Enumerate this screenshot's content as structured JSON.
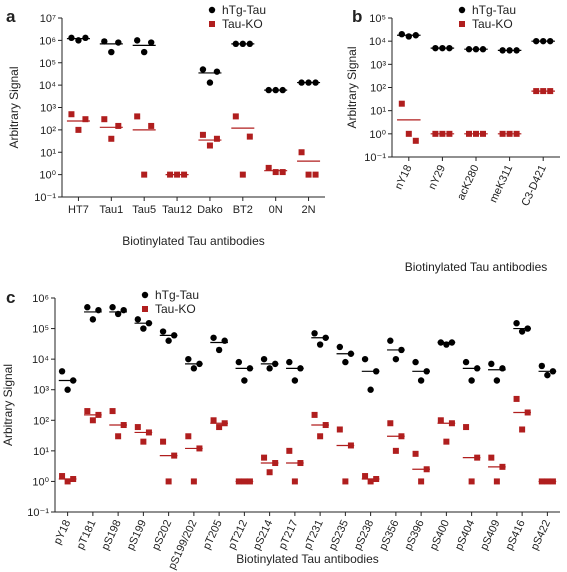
{
  "chart_data": [
    {
      "type": "scatter",
      "panel": "a",
      "ylabel": "Arbitrary Signal",
      "xlabel": "Biotinylated Tau antibodies",
      "log_y": true,
      "categories": [
        "HT7",
        "Tau1",
        "Tau5",
        "Tau12",
        "Dako",
        "BT2",
        "0N",
        "2N"
      ],
      "ylim": [
        0.1,
        10000000
      ],
      "yticks": [
        {
          "value": 0.1,
          "label": "10⁻¹"
        },
        {
          "value": 1,
          "label": "10⁰"
        },
        {
          "value": 10,
          "label": "10¹"
        },
        {
          "value": 100,
          "label": "10²"
        },
        {
          "value": 1000,
          "label": "10³"
        },
        {
          "value": 10000,
          "label": "10⁴"
        },
        {
          "value": 100000,
          "label": "10⁵"
        },
        {
          "value": 1000000,
          "label": "10⁶"
        },
        {
          "value": 10000000,
          "label": "10⁷"
        }
      ],
      "series": [
        {
          "name": "hTg-Tau",
          "color": "#000000",
          "marker": "circle",
          "points": [
            [
              1300000,
              1000000,
              1300000
            ],
            [
              900000,
              300000,
              800000
            ],
            [
              1000000,
              300000,
              800000
            ],
            null,
            [
              50000,
              13000,
              40000
            ],
            [
              700000,
              700000,
              700000
            ],
            [
              6000,
              6000,
              6000
            ],
            [
              13000,
              13000,
              13000
            ]
          ],
          "means": [
            1200000,
            700000,
            600000,
            null,
            35000,
            700000,
            6000,
            13000
          ]
        },
        {
          "name": "Tau-KO",
          "color": "#b01e1e",
          "marker": "square",
          "points": [
            [
              500,
              100,
              300
            ],
            [
              300,
              40,
              150
            ],
            [
              400,
              1,
              150
            ],
            [
              1,
              1,
              1
            ],
            [
              60,
              20,
              40
            ],
            [
              400,
              1,
              50
            ],
            [
              2,
              1.3,
              1.3
            ],
            [
              10,
              1,
              1
            ]
          ],
          "means": [
            250,
            130,
            100,
            1,
            35,
            120,
            1.5,
            4
          ]
        }
      ]
    },
    {
      "type": "scatter",
      "panel": "b",
      "ylabel": "Arbitrary Signal",
      "xlabel": "Biotinylated Tau antibodies",
      "log_y": true,
      "categories": [
        "nY18",
        "nY29",
        "acK280",
        "meK311",
        "C3-D421"
      ],
      "ylim": [
        0.1,
        100000
      ],
      "yticks": [
        {
          "value": 0.1,
          "label": "10⁻¹"
        },
        {
          "value": 1,
          "label": "10⁰"
        },
        {
          "value": 10,
          "label": "10¹"
        },
        {
          "value": 100,
          "label": "10²"
        },
        {
          "value": 1000,
          "label": "10³"
        },
        {
          "value": 10000,
          "label": "10⁴"
        },
        {
          "value": 100000,
          "label": "10⁵"
        }
      ],
      "series": [
        {
          "name": "hTg-Tau",
          "color": "#000000",
          "marker": "circle",
          "points": [
            [
              20000,
              16000,
              18000
            ],
            [
              5000,
              5000,
              5000
            ],
            [
              4500,
              4500,
              4500
            ],
            [
              4000,
              4000,
              4000
            ],
            [
              10000,
              10000,
              10000
            ]
          ],
          "means": [
            18000,
            5000,
            4500,
            4000,
            10000
          ]
        },
        {
          "name": "Tau-KO",
          "color": "#b01e1e",
          "marker": "square",
          "points": [
            [
              20,
              1,
              0.5
            ],
            [
              1,
              1,
              1
            ],
            [
              1,
              1,
              1
            ],
            [
              1,
              1,
              1
            ],
            [
              70,
              70,
              70
            ]
          ],
          "means": [
            4,
            1,
            1,
            1,
            70
          ]
        }
      ]
    },
    {
      "type": "scatter",
      "panel": "c",
      "ylabel": "Arbitrary Signal",
      "xlabel": "Biotinylated Tau antibodies",
      "log_y": true,
      "categories": [
        "pY18",
        "pT181",
        "pS198",
        "pS199",
        "pS202",
        "pS199/202",
        "pT205",
        "pT212",
        "pS214",
        "pT217",
        "pT231",
        "pS235",
        "pS238",
        "pS356",
        "pS396",
        "pS400",
        "pS404",
        "pS409",
        "pS416",
        "pS422"
      ],
      "ylim": [
        0.1,
        1000000
      ],
      "yticks": [
        {
          "value": 0.1,
          "label": "10⁻¹"
        },
        {
          "value": 1,
          "label": "10⁰"
        },
        {
          "value": 10,
          "label": "10¹"
        },
        {
          "value": 100,
          "label": "10²"
        },
        {
          "value": 1000,
          "label": "10³"
        },
        {
          "value": 10000,
          "label": "10⁴"
        },
        {
          "value": 100000,
          "label": "10⁵"
        },
        {
          "value": 1000000,
          "label": "10⁶"
        }
      ],
      "series": [
        {
          "name": "hTg-Tau",
          "color": "#000000",
          "marker": "circle",
          "points": [
            [
              4000,
              1000,
              2000
            ],
            [
              500000,
              200000,
              400000
            ],
            [
              500000,
              300000,
              400000
            ],
            [
              200000,
              100000,
              150000
            ],
            [
              80000,
              40000,
              60000
            ],
            [
              10000,
              5000,
              7000
            ],
            [
              50000,
              20000,
              40000
            ],
            [
              8000,
              2000,
              5000
            ],
            [
              10000,
              5000,
              7000
            ],
            [
              8000,
              2000,
              5000
            ],
            [
              70000,
              30000,
              50000
            ],
            [
              25000,
              8000,
              15000
            ],
            [
              10000,
              1000,
              4000
            ],
            [
              40000,
              10000,
              20000
            ],
            [
              8000,
              2000,
              4000
            ],
            [
              35000,
              30000,
              35000
            ],
            [
              8000,
              2000,
              5000
            ],
            [
              7000,
              2000,
              5000
            ],
            [
              150000,
              80000,
              100000
            ],
            [
              6000,
              3000,
              4000
            ]
          ],
          "means": [
            2000,
            350000,
            350000,
            150000,
            60000,
            7000,
            35000,
            5000,
            7000,
            5000,
            50000,
            15000,
            4000,
            20000,
            4000,
            35000,
            5000,
            4500,
            100000,
            4000
          ]
        },
        {
          "name": "Tau-KO",
          "color": "#b01e1e",
          "marker": "square",
          "points": [
            [
              1.5,
              1,
              1.2
            ],
            [
              200,
              100,
              150
            ],
            [
              200,
              30,
              70
            ],
            [
              60,
              20,
              40
            ],
            [
              20,
              1,
              7
            ],
            [
              30,
              1,
              12
            ],
            [
              100,
              60,
              80
            ],
            [
              1,
              1,
              1
            ],
            [
              6,
              2,
              4
            ],
            [
              10,
              1,
              4
            ],
            [
              150,
              30,
              70
            ],
            [
              50,
              1,
              15
            ],
            [
              1.5,
              1,
              1.2
            ],
            [
              80,
              10,
              30
            ],
            [
              8,
              1,
              2.5
            ],
            [
              100,
              20,
              80
            ],
            [
              60,
              1,
              6
            ],
            [
              6,
              1,
              3
            ],
            [
              500,
              50,
              180
            ],
            [
              1,
              1,
              1
            ]
          ],
          "means": [
            1.2,
            150,
            70,
            40,
            7,
            12,
            80,
            1,
            4,
            4,
            70,
            15,
            1.2,
            30,
            2.5,
            80,
            6,
            3,
            180,
            1
          ]
        }
      ]
    }
  ]
}
